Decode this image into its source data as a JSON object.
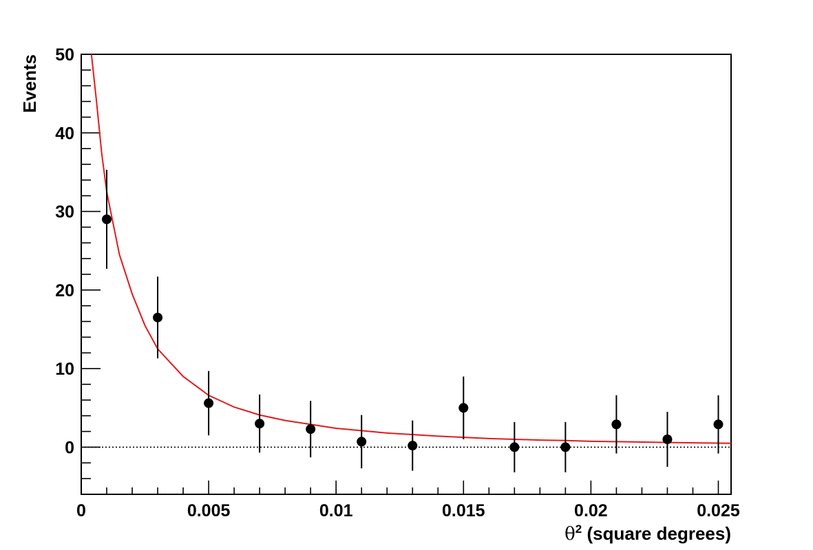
{
  "chart_data": {
    "type": "scatter",
    "title": "",
    "xlabel_symbol": "θ",
    "xlabel_sup": "2",
    "xlabel_rest": " (square degrees)",
    "ylabel": "Events",
    "xlim": [
      0,
      0.0255
    ],
    "ylim": [
      -6,
      50
    ],
    "x_ticks": [
      0,
      0.005,
      0.01,
      0.015,
      0.02,
      0.025
    ],
    "x_tick_labels": [
      "0",
      "0.005",
      "0.01",
      "0.015",
      "0.02",
      "0.025"
    ],
    "y_ticks": [
      0,
      10,
      20,
      30,
      40,
      50
    ],
    "y_tick_labels": [
      "0",
      "10",
      "20",
      "30",
      "40",
      "50"
    ],
    "grid": false,
    "zero_line": "dotted",
    "series": [
      {
        "type": "points-with-error-bars",
        "color": "#000000",
        "points": [
          {
            "x": 0.001,
            "y": 29.0,
            "err": 6.3
          },
          {
            "x": 0.003,
            "y": 16.5,
            "err": 5.2
          },
          {
            "x": 0.005,
            "y": 5.6,
            "err": 4.1
          },
          {
            "x": 0.007,
            "y": 3.0,
            "err": 3.7
          },
          {
            "x": 0.009,
            "y": 2.3,
            "err": 3.6
          },
          {
            "x": 0.011,
            "y": 0.7,
            "err": 3.4
          },
          {
            "x": 0.013,
            "y": 0.2,
            "err": 3.2
          },
          {
            "x": 0.015,
            "y": 5.0,
            "err": 4.0
          },
          {
            "x": 0.017,
            "y": 0.0,
            "err": 3.2
          },
          {
            "x": 0.019,
            "y": 0.0,
            "err": 3.2
          },
          {
            "x": 0.021,
            "y": 2.9,
            "err": 3.7
          },
          {
            "x": 0.023,
            "y": 1.0,
            "err": 3.5
          },
          {
            "x": 0.025,
            "y": 2.9,
            "err": 3.7
          }
        ]
      },
      {
        "type": "fit-curve",
        "color": "#e31a1c",
        "points": [
          {
            "x": 0.0004,
            "y": 50.0
          },
          {
            "x": 0.0006,
            "y": 44.0
          },
          {
            "x": 0.0008,
            "y": 37.5
          },
          {
            "x": 0.001,
            "y": 32.5
          },
          {
            "x": 0.0015,
            "y": 24.5
          },
          {
            "x": 0.002,
            "y": 19.5
          },
          {
            "x": 0.0025,
            "y": 15.5
          },
          {
            "x": 0.003,
            "y": 12.5
          },
          {
            "x": 0.004,
            "y": 9.0
          },
          {
            "x": 0.005,
            "y": 6.6
          },
          {
            "x": 0.006,
            "y": 5.1
          },
          {
            "x": 0.007,
            "y": 4.1
          },
          {
            "x": 0.008,
            "y": 3.4
          },
          {
            "x": 0.009,
            "y": 2.9
          },
          {
            "x": 0.01,
            "y": 2.4
          },
          {
            "x": 0.011,
            "y": 2.1
          },
          {
            "x": 0.012,
            "y": 1.8
          },
          {
            "x": 0.013,
            "y": 1.6
          },
          {
            "x": 0.014,
            "y": 1.4
          },
          {
            "x": 0.015,
            "y": 1.25
          },
          {
            "x": 0.016,
            "y": 1.1
          },
          {
            "x": 0.017,
            "y": 1.0
          },
          {
            "x": 0.018,
            "y": 0.9
          },
          {
            "x": 0.019,
            "y": 0.85
          },
          {
            "x": 0.02,
            "y": 0.75
          },
          {
            "x": 0.021,
            "y": 0.7
          },
          {
            "x": 0.022,
            "y": 0.65
          },
          {
            "x": 0.023,
            "y": 0.6
          },
          {
            "x": 0.024,
            "y": 0.55
          },
          {
            "x": 0.0255,
            "y": 0.5
          }
        ]
      }
    ]
  }
}
